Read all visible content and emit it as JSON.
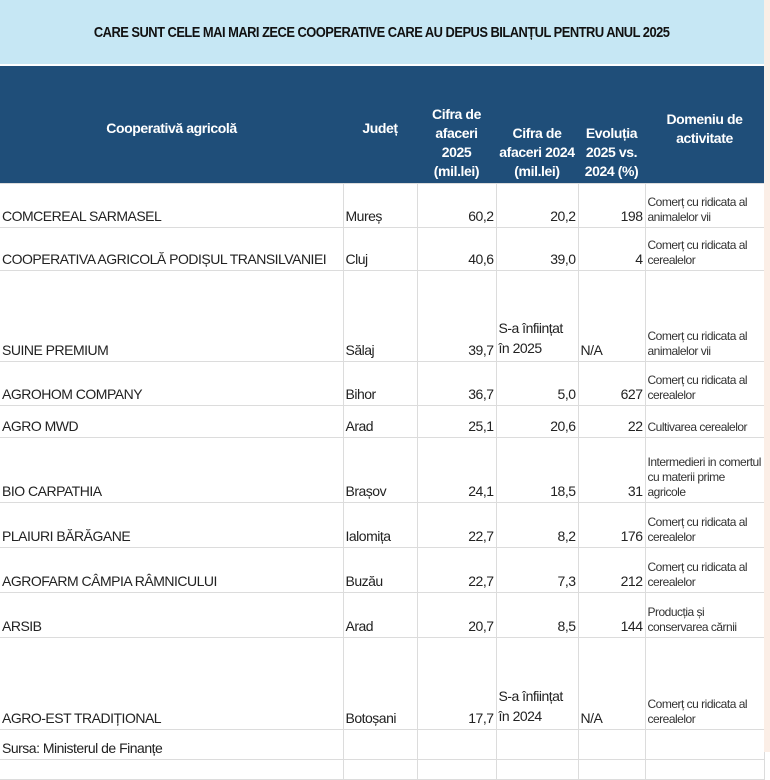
{
  "title": "CARE SUNT CELE MAI MARI ZECE COOPERATIVE CARE AU DEPUS BILANȚUL PENTRU ANUL 2025",
  "headers": [
    "Cooperativă agricolă",
    "Județ",
    "Cifra de afaceri 2025 (mil.lei)",
    "Cifra de afaceri 2024 (mil.lei)",
    "Evoluția 2025 vs. 2024 (%)",
    "Domeniu de activitate"
  ],
  "rows": [
    {
      "name": "COMCEREAL SARMASEL",
      "county": "Mureș",
      "rev2025": "60,2",
      "rev2024": "20,2",
      "evolution": "198",
      "domain": "Comerț cu ridicata al animalelor vii"
    },
    {
      "name": "COOPERATIVA AGRICOLĂ PODIȘUL TRANSILVANIEI",
      "county": "Cluj",
      "rev2025": "40,6",
      "rev2024": "39,0",
      "evolution": "4",
      "domain": "Comerț cu ridicata al cerealelor"
    },
    {
      "name": "SUINE PREMIUM",
      "county": "Sălaj",
      "rev2025": "39,7",
      "rev2024": "S-a înființat în 2025",
      "evolution": "N/A",
      "domain": "Comerț cu ridicata al animalelor vii"
    },
    {
      "name": " AGROHOM COMPANY",
      "county": "Bihor",
      "rev2025": "36,7",
      "rev2024": "5,0",
      "evolution": "627",
      "domain": "Comerț cu ridicata al cerealelor"
    },
    {
      "name": "AGRO MWD",
      "county": "Arad",
      "rev2025": "25,1",
      "rev2024": "20,6",
      "evolution": "22",
      "domain": "Cultivarea cerealelor"
    },
    {
      "name": "BIO CARPATHIA",
      "county": "Brașov",
      "rev2025": "24,1",
      "rev2024": "18,5",
      "evolution": "31",
      "domain": " Intermedieri in comertul cu materii prime agricole"
    },
    {
      "name": "PLAIURI BĂRĂGANE",
      "county": "Ialomița",
      "rev2025": "22,7",
      "rev2024": "8,2",
      "evolution": "176",
      "domain": "Comerț cu ridicata al cerealelor"
    },
    {
      "name": "AGROFARM CÂMPIA RÂMNICULUI",
      "county": "Buzău",
      "rev2025": "22,7",
      "rev2024": "7,3",
      "evolution": "212",
      "domain": "Comerț cu ridicata al cerealelor"
    },
    {
      "name": "ARSIB",
      "county": "Arad",
      "rev2025": "20,7",
      "rev2024": "8,5",
      "evolution": "144",
      "domain": "Producția și conservarea cărnii"
    },
    {
      "name": "AGRO-EST TRADIȚIONAL",
      "county": "Botoșani",
      "rev2025": "17,7",
      "rev2024": "S-a înființat în 2024",
      "evolution": "N/A",
      "domain": "Comerț cu ridicata al cerealelor"
    }
  ],
  "source": "Sursa: Ministerul de Finanțe"
}
